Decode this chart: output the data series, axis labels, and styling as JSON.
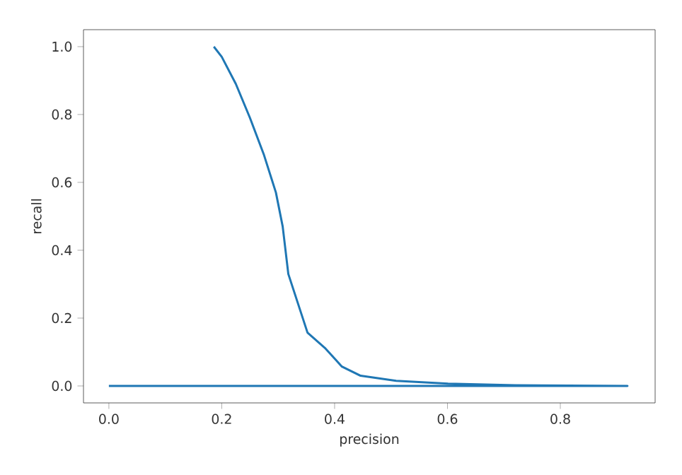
{
  "chart_data": {
    "type": "line",
    "xlabel": "precision",
    "ylabel": "recall",
    "xlim": [
      -0.045,
      0.968
    ],
    "ylim": [
      -0.05,
      1.05
    ],
    "xticks": [
      {
        "value": 0.0,
        "label": "0.0"
      },
      {
        "value": 0.2,
        "label": "0.2"
      },
      {
        "value": 0.4,
        "label": "0.4"
      },
      {
        "value": 0.6,
        "label": "0.6"
      },
      {
        "value": 0.8,
        "label": "0.8"
      }
    ],
    "yticks": [
      {
        "value": 0.0,
        "label": "0.0"
      },
      {
        "value": 0.2,
        "label": "0.2"
      },
      {
        "value": 0.4,
        "label": "0.4"
      },
      {
        "value": 0.6,
        "label": "0.6"
      },
      {
        "value": 0.8,
        "label": "0.8"
      },
      {
        "value": 1.0,
        "label": "1.0"
      }
    ],
    "grid": false,
    "series": [
      {
        "color": "#1f77b4",
        "x": [
          0.186,
          0.2,
          0.225,
          0.25,
          0.275,
          0.296,
          0.308,
          0.318,
          0.352,
          0.384,
          0.413,
          0.446,
          0.509,
          0.601,
          0.72,
          0.919,
          0.0
        ],
        "values": [
          1.0,
          0.97,
          0.89,
          0.79,
          0.68,
          0.57,
          0.47,
          0.33,
          0.157,
          0.11,
          0.057,
          0.03,
          0.015,
          0.007,
          0.002,
          0.0,
          0.0
        ]
      }
    ]
  }
}
